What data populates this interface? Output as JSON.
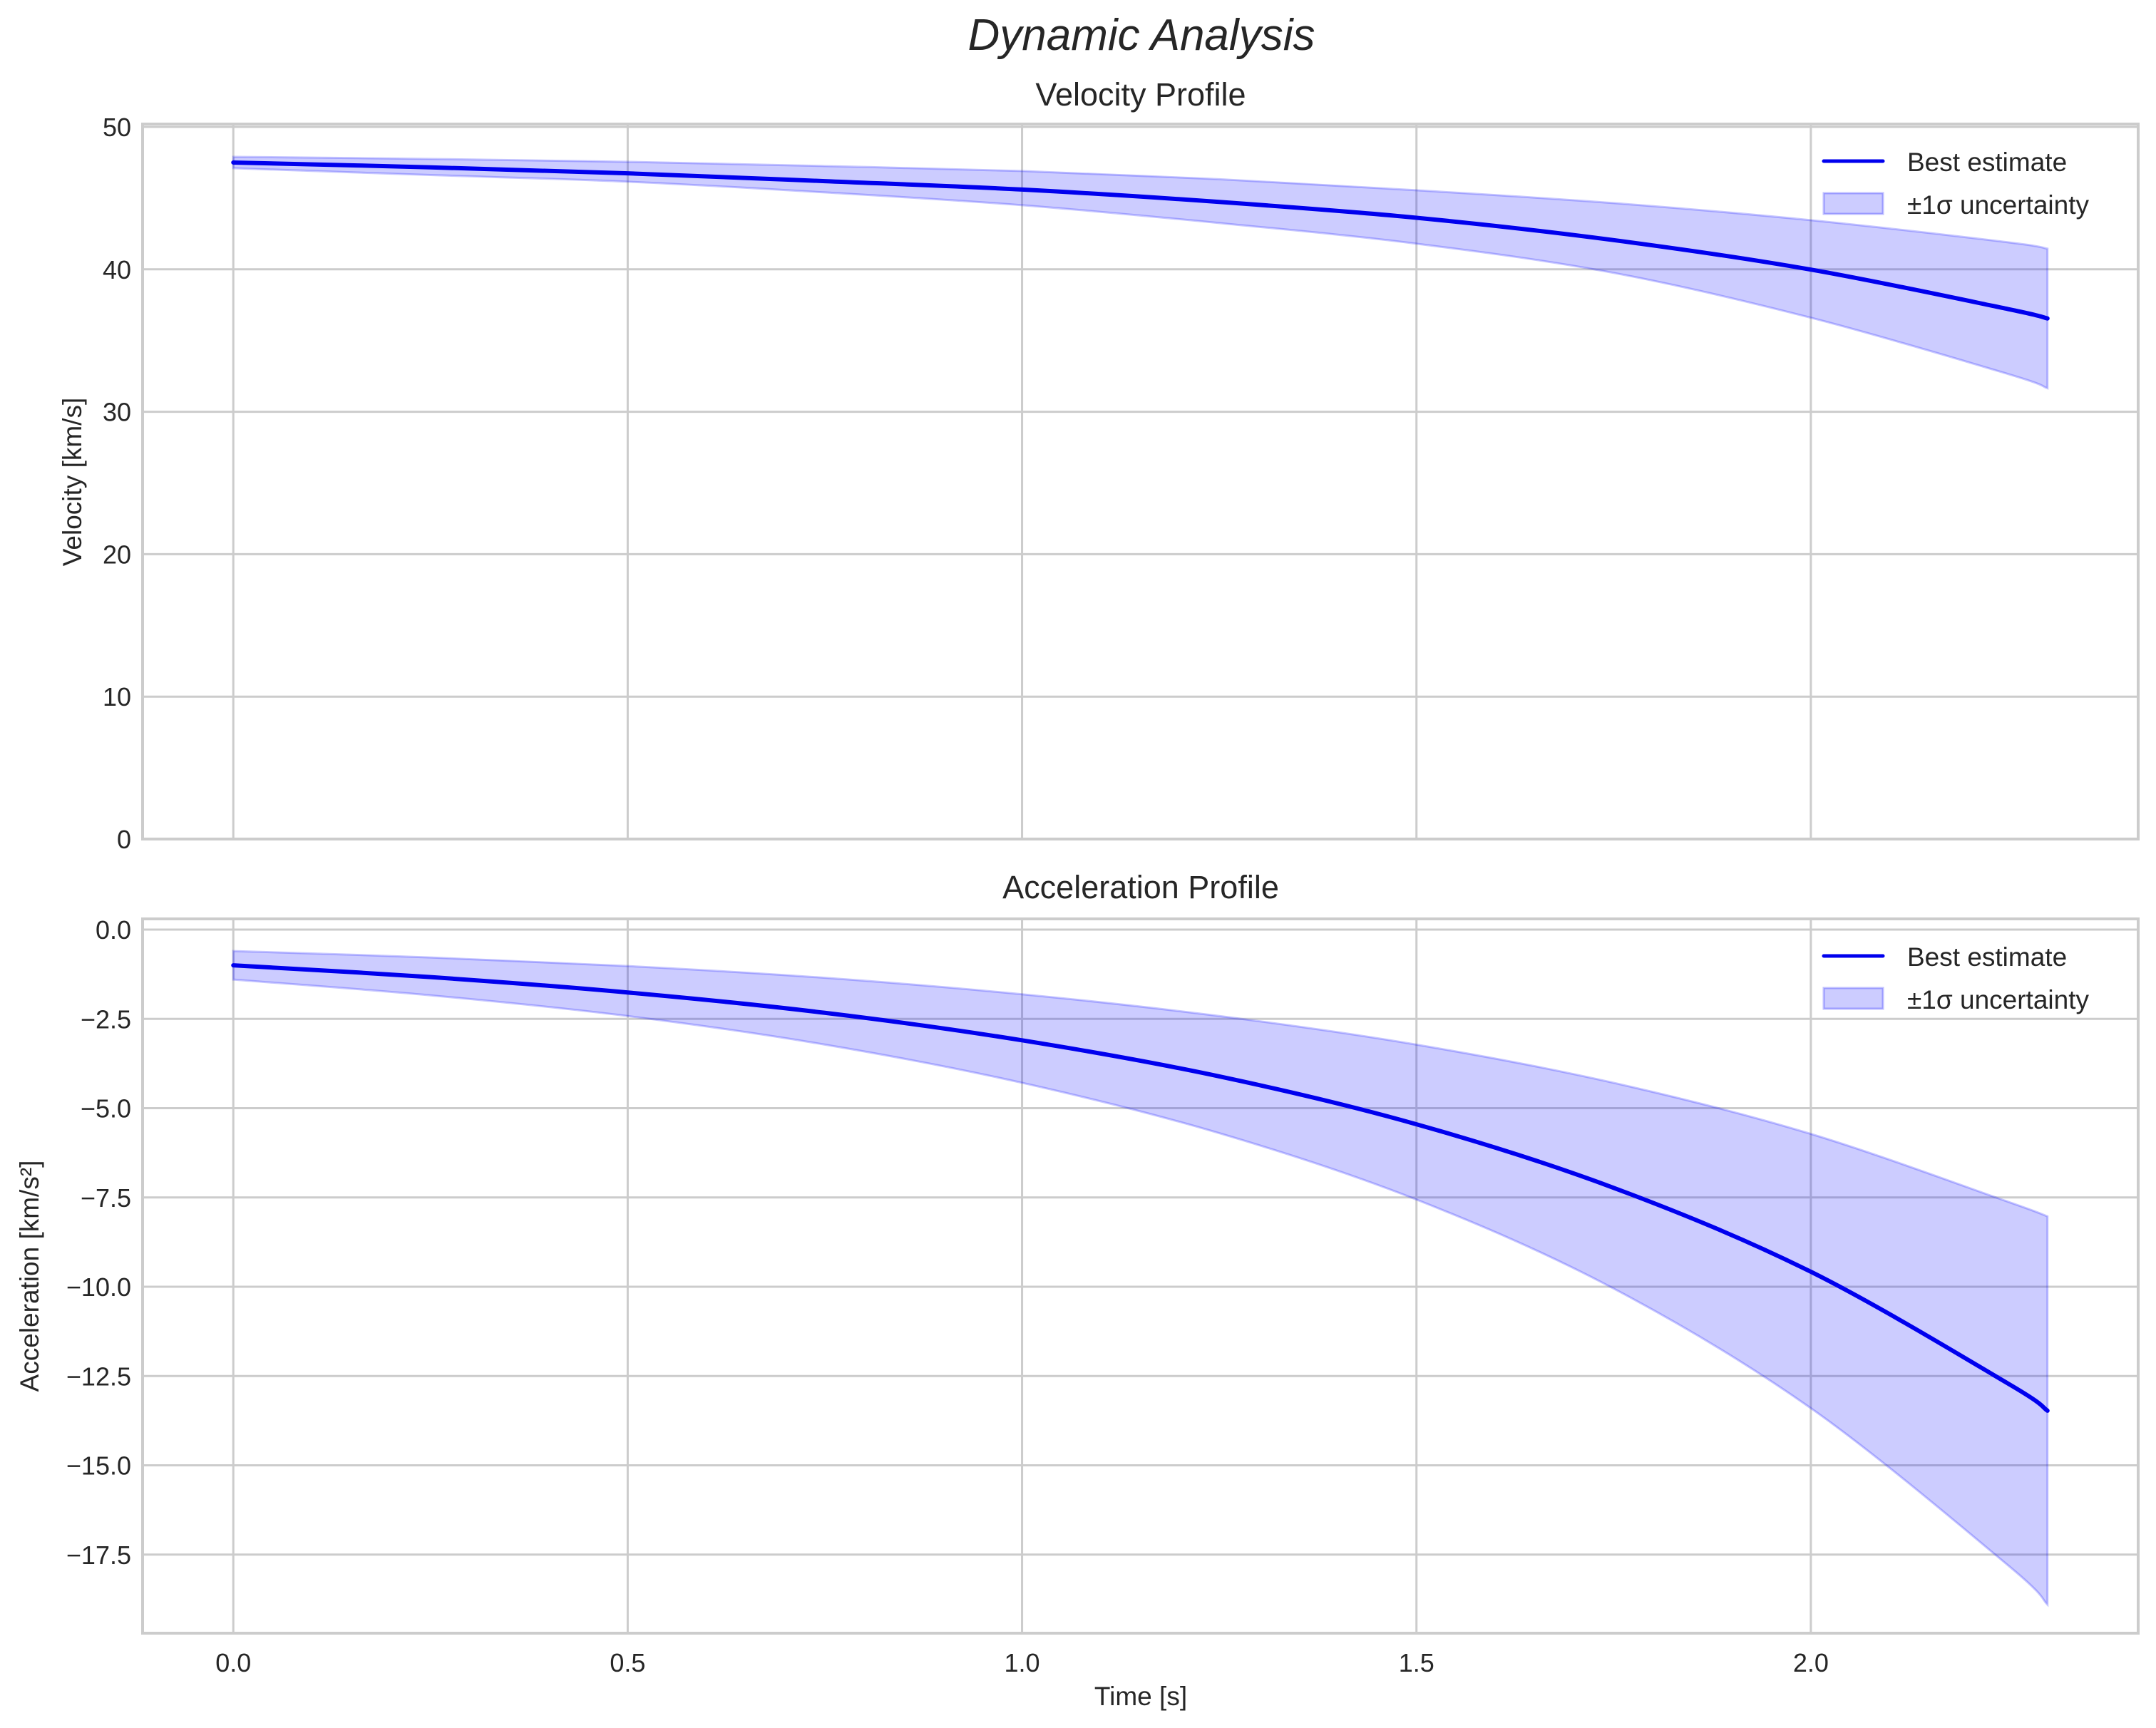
{
  "figure": {
    "suptitle": "Dynamic Analysis",
    "xlabel": "Time [s]",
    "colors": {
      "line": "#0000ee",
      "band_fill": "#0000ff",
      "band_alpha": 0.2,
      "grid": "#cccccc",
      "text": "#262626"
    }
  },
  "chart_data": [
    {
      "type": "line",
      "title": "Velocity Profile",
      "xlabel": "",
      "ylabel": "Velocity [km/s]",
      "xlim": [
        -0.115,
        2.415
      ],
      "ylim": [
        0,
        50.2
      ],
      "xticks": [
        0.0,
        0.5,
        1.0,
        1.5,
        2.0
      ],
      "xtick_labels": [
        "0.0",
        "0.5",
        "1.0",
        "1.5",
        "2.0"
      ],
      "show_xtick_labels": false,
      "yticks": [
        0,
        10,
        20,
        30,
        40,
        50
      ],
      "ytick_labels": [
        "0",
        "10",
        "20",
        "30",
        "40",
        "50"
      ],
      "grid": true,
      "legend_position": "upper right",
      "legend": [
        "Best estimate",
        "±1σ uncertainty"
      ],
      "x": [
        0.0,
        0.25,
        0.5,
        0.75,
        1.0,
        1.25,
        1.5,
        1.75,
        2.0,
        2.25,
        2.3
      ],
      "series": [
        {
          "name": "Best estimate",
          "kind": "line",
          "values": [
            47.5,
            47.16,
            46.74,
            46.19,
            45.6,
            44.73,
            43.62,
            42.05,
            39.98,
            37.21,
            36.55
          ]
        },
        {
          "name": "±1σ uncertainty",
          "kind": "band",
          "upper": [
            47.9,
            47.75,
            47.55,
            47.25,
            46.9,
            46.33,
            45.55,
            44.65,
            43.45,
            41.9,
            41.45
          ],
          "lower": [
            47.1,
            46.62,
            46.15,
            45.4,
            44.5,
            43.25,
            41.8,
            39.75,
            36.6,
            32.65,
            31.65
          ]
        }
      ]
    },
    {
      "type": "line",
      "title": "Acceleration Profile",
      "xlabel": "Time [s]",
      "ylabel": "Acceleration [km/s²]",
      "xlim": [
        -0.115,
        2.415
      ],
      "ylim": [
        -19.7,
        0.3
      ],
      "xticks": [
        0.0,
        0.5,
        1.0,
        1.5,
        2.0
      ],
      "xtick_labels": [
        "0.0",
        "0.5",
        "1.0",
        "1.5",
        "2.0"
      ],
      "show_xtick_labels": true,
      "yticks": [
        0.0,
        -2.5,
        -5.0,
        -7.5,
        -10.0,
        -12.5,
        -15.0,
        -17.5
      ],
      "ytick_labels": [
        "0.0",
        "−2.5",
        "−5.0",
        "−7.5",
        "−10.0",
        "−12.5",
        "−15.0",
        "−17.5"
      ],
      "grid": true,
      "legend_position": "upper right",
      "legend": [
        "Best estimate",
        "±1σ uncertainty"
      ],
      "x": [
        0.0,
        0.25,
        0.5,
        0.75,
        1.0,
        1.25,
        1.5,
        1.75,
        2.0,
        2.25,
        2.3
      ],
      "series": [
        {
          "name": "Best estimate",
          "kind": "line",
          "values": [
            -1.0,
            -1.33,
            -1.76,
            -2.33,
            -3.1,
            -4.11,
            -5.45,
            -7.23,
            -9.58,
            -12.71,
            -13.47
          ]
        },
        {
          "name": "±1σ uncertainty",
          "kind": "band",
          "upper": [
            -0.6,
            -0.78,
            -1.02,
            -1.35,
            -1.81,
            -2.42,
            -3.22,
            -4.29,
            -5.72,
            -7.62,
            -8.03
          ],
          "lower": [
            -1.4,
            -1.84,
            -2.42,
            -3.22,
            -4.29,
            -5.7,
            -7.56,
            -10.05,
            -13.4,
            -17.8,
            -18.9
          ]
        }
      ]
    }
  ]
}
